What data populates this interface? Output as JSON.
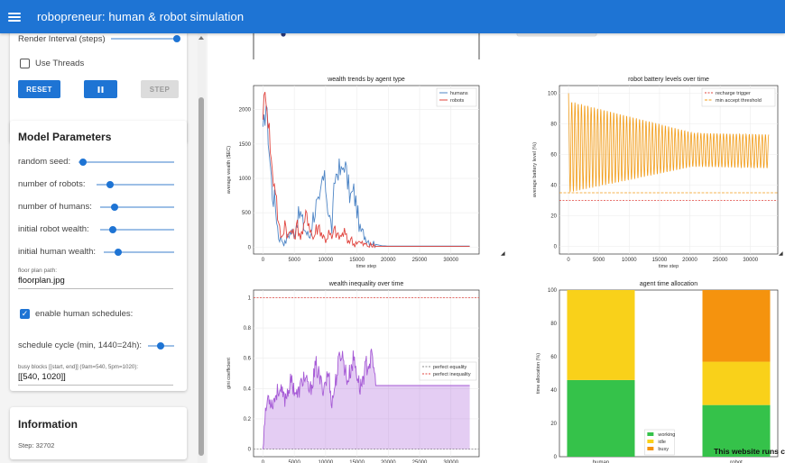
{
  "app": {
    "title": "robopreneur: human & robot simulation"
  },
  "controls": {
    "render_interval_label": "Render Interval (steps)",
    "render_interval_value": 1.0,
    "use_threads_label": "Use Threads",
    "use_threads": false,
    "reset_label": "RESET",
    "pause_icon": "pause-icon",
    "step_label": "STEP"
  },
  "params": {
    "heading": "Model Parameters",
    "random_seed_label": "random seed:",
    "random_seed_value": 0.1,
    "num_robots_label": "number of robots:",
    "num_robots_value": 0.1,
    "num_humans_label": "number of humans:",
    "num_humans_value": 0.2,
    "init_robot_wealth_label": "initial robot wealth:",
    "init_robot_wealth_value": 0.15,
    "init_human_wealth_label": "initial human wealth:",
    "init_human_wealth_value": 0.2,
    "floor_plan_caption": "floor plan path:",
    "floor_plan_value": "floorplan.jpg",
    "enable_schedules_label": "enable human schedules:",
    "enable_schedules": true,
    "schedule_cycle_label": "schedule cycle (min, 1440=24h):",
    "schedule_cycle_value": 0.4,
    "busy_blocks_caption": "busy blocks [[start, end]] (9am=540, 5pm=1020):",
    "busy_blocks_value": "[[540, 1020]]"
  },
  "info": {
    "heading": "Information",
    "step_text": "Step: 32702"
  },
  "footer_note": "This website runs c",
  "colors": {
    "primary": "#1e74d4",
    "humans": "#4f86c6",
    "robots": "#e0443e",
    "battery": "#f29d1a",
    "gini": "#a65bd6",
    "working": "#35c24a",
    "idle": "#f9d11a",
    "busy": "#f5930e"
  },
  "chart_data": [
    {
      "type": "line",
      "title": "wealth trends by agent type",
      "ylabel": "average wealth ($EC)",
      "xlabel": "time step",
      "xlim": [
        -1500,
        34500
      ],
      "ylim": [
        -100,
        2350
      ],
      "xticks": [
        0,
        5000,
        10000,
        15000,
        20000,
        25000,
        30000
      ],
      "yticks": [
        0,
        500,
        1000,
        1500,
        2000
      ],
      "series": [
        {
          "name": "humans",
          "points": [
            [
              0,
              1600
            ],
            [
              500,
              2100
            ],
            [
              1000,
              1400
            ],
            [
              1500,
              800
            ],
            [
              2000,
              600
            ],
            [
              2500,
              150
            ],
            [
              3000,
              120
            ],
            [
              3500,
              50
            ],
            [
              4000,
              180
            ],
            [
              4500,
              220
            ],
            [
              5000,
              200
            ],
            [
              5500,
              420
            ],
            [
              6000,
              480
            ],
            [
              6500,
              300
            ],
            [
              7000,
              200
            ],
            [
              7500,
              150
            ],
            [
              8000,
              450
            ],
            [
              8500,
              600
            ],
            [
              9000,
              560
            ],
            [
              9500,
              1000
            ],
            [
              10000,
              900
            ],
            [
              10500,
              500
            ],
            [
              11000,
              260
            ],
            [
              11500,
              1000
            ],
            [
              12000,
              1150
            ],
            [
              12500,
              1050
            ],
            [
              13000,
              1250
            ],
            [
              13500,
              950
            ],
            [
              14000,
              720
            ],
            [
              14500,
              800
            ],
            [
              15000,
              560
            ],
            [
              15500,
              240
            ],
            [
              16000,
              200
            ],
            [
              16500,
              130
            ],
            [
              17000,
              90
            ],
            [
              17500,
              70
            ],
            [
              18000,
              40
            ],
            [
              19000,
              20
            ],
            [
              20000,
              15
            ],
            [
              25000,
              15
            ],
            [
              33000,
              15
            ]
          ]
        },
        {
          "name": "robots",
          "points": [
            [
              0,
              2000
            ],
            [
              500,
              2250
            ],
            [
              1000,
              1700
            ],
            [
              1500,
              1050
            ],
            [
              2000,
              900
            ],
            [
              2500,
              300
            ],
            [
              3000,
              120
            ],
            [
              3500,
              380
            ],
            [
              4000,
              150
            ],
            [
              4500,
              250
            ],
            [
              5000,
              150
            ],
            [
              5500,
              320
            ],
            [
              6000,
              160
            ],
            [
              6500,
              250
            ],
            [
              7000,
              520
            ],
            [
              7500,
              300
            ],
            [
              8000,
              120
            ],
            [
              8500,
              260
            ],
            [
              9000,
              300
            ],
            [
              9500,
              170
            ],
            [
              10000,
              110
            ],
            [
              10500,
              200
            ],
            [
              11000,
              120
            ],
            [
              11500,
              260
            ],
            [
              12000,
              140
            ],
            [
              12500,
              160
            ],
            [
              13000,
              220
            ],
            [
              13500,
              80
            ],
            [
              14000,
              130
            ],
            [
              14500,
              40
            ],
            [
              15000,
              90
            ],
            [
              15500,
              60
            ],
            [
              16000,
              40
            ],
            [
              17000,
              20
            ],
            [
              18000,
              10
            ],
            [
              25000,
              10
            ],
            [
              33000,
              10
            ]
          ]
        }
      ]
    },
    {
      "type": "line",
      "title": "robot battery levels over time",
      "ylabel": "average battery level (%)",
      "xlabel": "time step",
      "xlim": [
        -1500,
        34500
      ],
      "ylim": [
        -5,
        105
      ],
      "xticks": [
        0,
        5000,
        10000,
        15000,
        20000,
        25000,
        30000
      ],
      "yticks": [
        0,
        20,
        40,
        60,
        80,
        100
      ],
      "thresholds": [
        {
          "name": "recharge trigger",
          "value": 30
        },
        {
          "name": "min accept threshold",
          "value": 35
        }
      ],
      "series": [
        {
          "name": "battery",
          "amplitude_start": 60,
          "amplitude_end": 22,
          "center_start": 65,
          "center_end": 62,
          "cycles": 62,
          "start_value": 100,
          "first_min": 34
        }
      ]
    },
    {
      "type": "area",
      "title": "wealth inequality over time",
      "ylabel": "gini coefficient",
      "xlabel": "time step",
      "xlim": [
        -1500,
        34500
      ],
      "ylim": [
        -0.05,
        1.05
      ],
      "xticks": [
        0,
        5000,
        10000,
        15000,
        20000,
        25000,
        30000
      ],
      "yticks": [
        0.0,
        0.2,
        0.4,
        0.6,
        0.8,
        1.0
      ],
      "references": [
        {
          "name": "perfect equality",
          "value": 0.0
        },
        {
          "name": "perfect inequality",
          "value": 1.0
        }
      ],
      "series": [
        {
          "name": "gini",
          "points": [
            [
              0,
              0.0
            ],
            [
              300,
              0.2
            ],
            [
              800,
              0.35
            ],
            [
              1500,
              0.3
            ],
            [
              2500,
              0.4
            ],
            [
              3500,
              0.33
            ],
            [
              4500,
              0.45
            ],
            [
              5500,
              0.35
            ],
            [
              6500,
              0.48
            ],
            [
              7500,
              0.38
            ],
            [
              8500,
              0.55
            ],
            [
              9500,
              0.4
            ],
            [
              10500,
              0.5
            ],
            [
              11000,
              0.3
            ],
            [
              12000,
              0.55
            ],
            [
              12500,
              0.65
            ],
            [
              13500,
              0.45
            ],
            [
              14500,
              0.6
            ],
            [
              15500,
              0.4
            ],
            [
              16500,
              0.55
            ],
            [
              17500,
              0.6
            ],
            [
              18000,
              0.42
            ],
            [
              33000,
              0.42
            ]
          ]
        }
      ]
    },
    {
      "type": "bar",
      "title": "agent time allocation",
      "ylabel": "time allocation (%)",
      "categories": [
        "human",
        "robot"
      ],
      "ylim": [
        0,
        100
      ],
      "yticks": [
        0,
        20,
        40,
        60,
        80,
        100
      ],
      "series": [
        {
          "name": "working",
          "values": [
            46,
            31
          ]
        },
        {
          "name": "idle",
          "values": [
            54,
            26
          ]
        },
        {
          "name": "busy",
          "values": [
            0,
            43
          ]
        }
      ]
    }
  ]
}
